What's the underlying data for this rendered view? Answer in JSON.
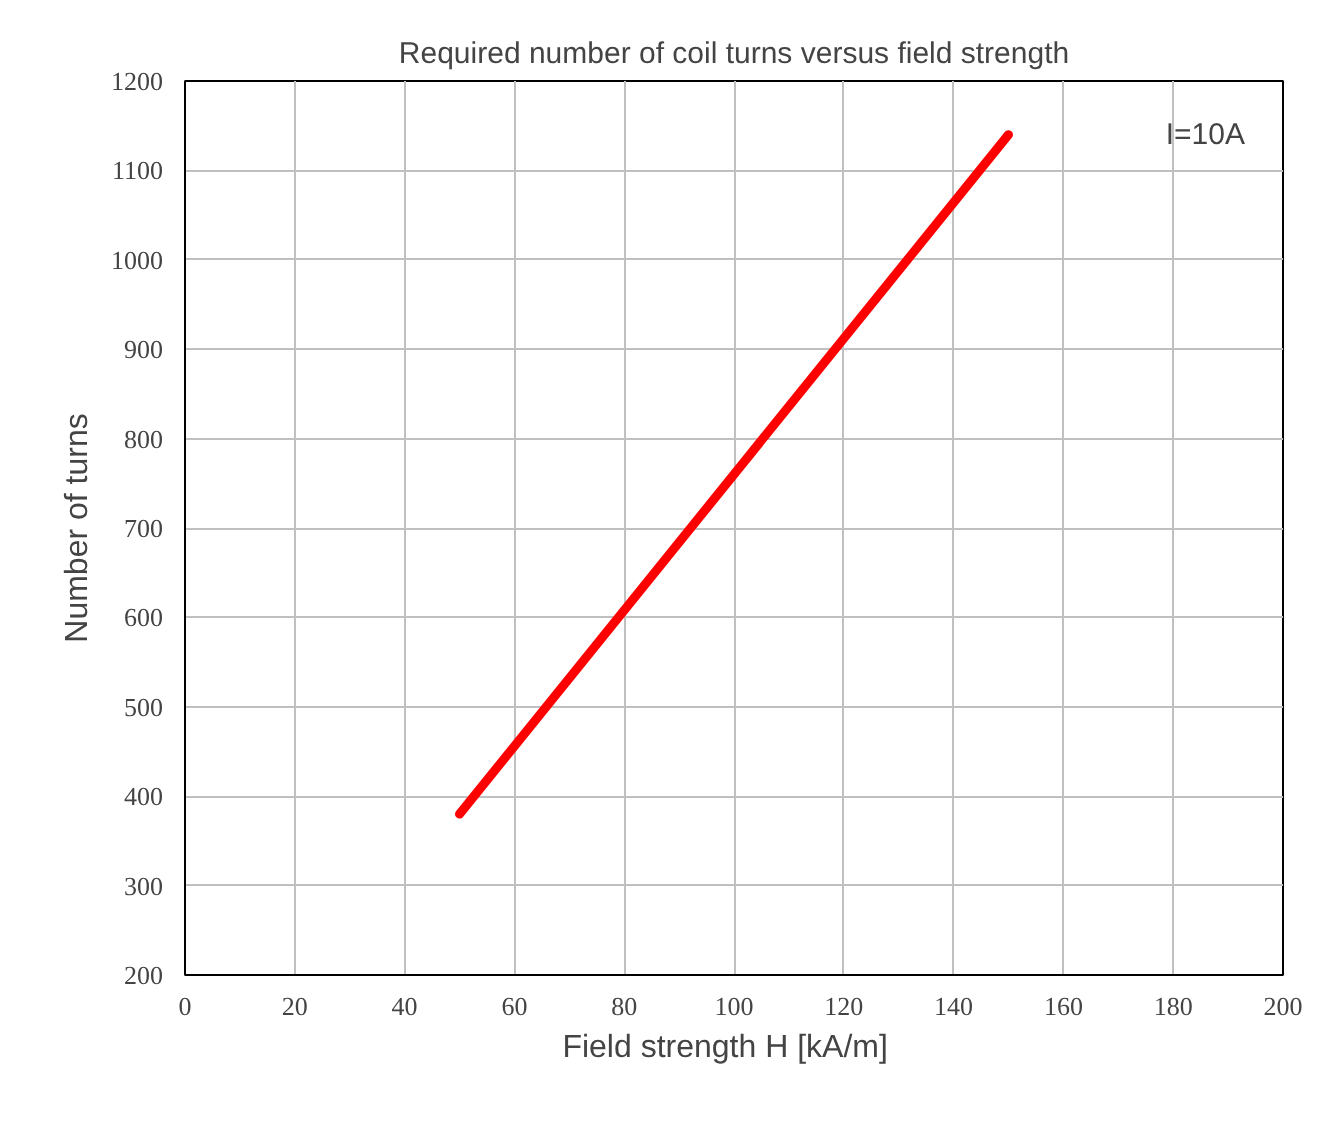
{
  "chart_data": {
    "type": "line",
    "title": "Required number of coil turns versus field strength",
    "xlabel": "Field strength  H  [kA/m]",
    "ylabel": "Number of turns",
    "x": [
      50,
      150
    ],
    "series": [
      {
        "color": "#ff0000",
        "values": [
          380,
          1140
        ]
      }
    ],
    "xlim": [
      0,
      200
    ],
    "xticks": [
      0,
      20,
      40,
      60,
      80,
      100,
      120,
      140,
      160,
      180,
      200
    ],
    "ylim": [
      200,
      1200
    ],
    "yticks": [
      200,
      300,
      400,
      500,
      600,
      700,
      800,
      900,
      1000,
      1100,
      1200
    ],
    "grid": true,
    "marker": "none",
    "line_style": "solid",
    "annotations": [
      "I=10A"
    ]
  }
}
